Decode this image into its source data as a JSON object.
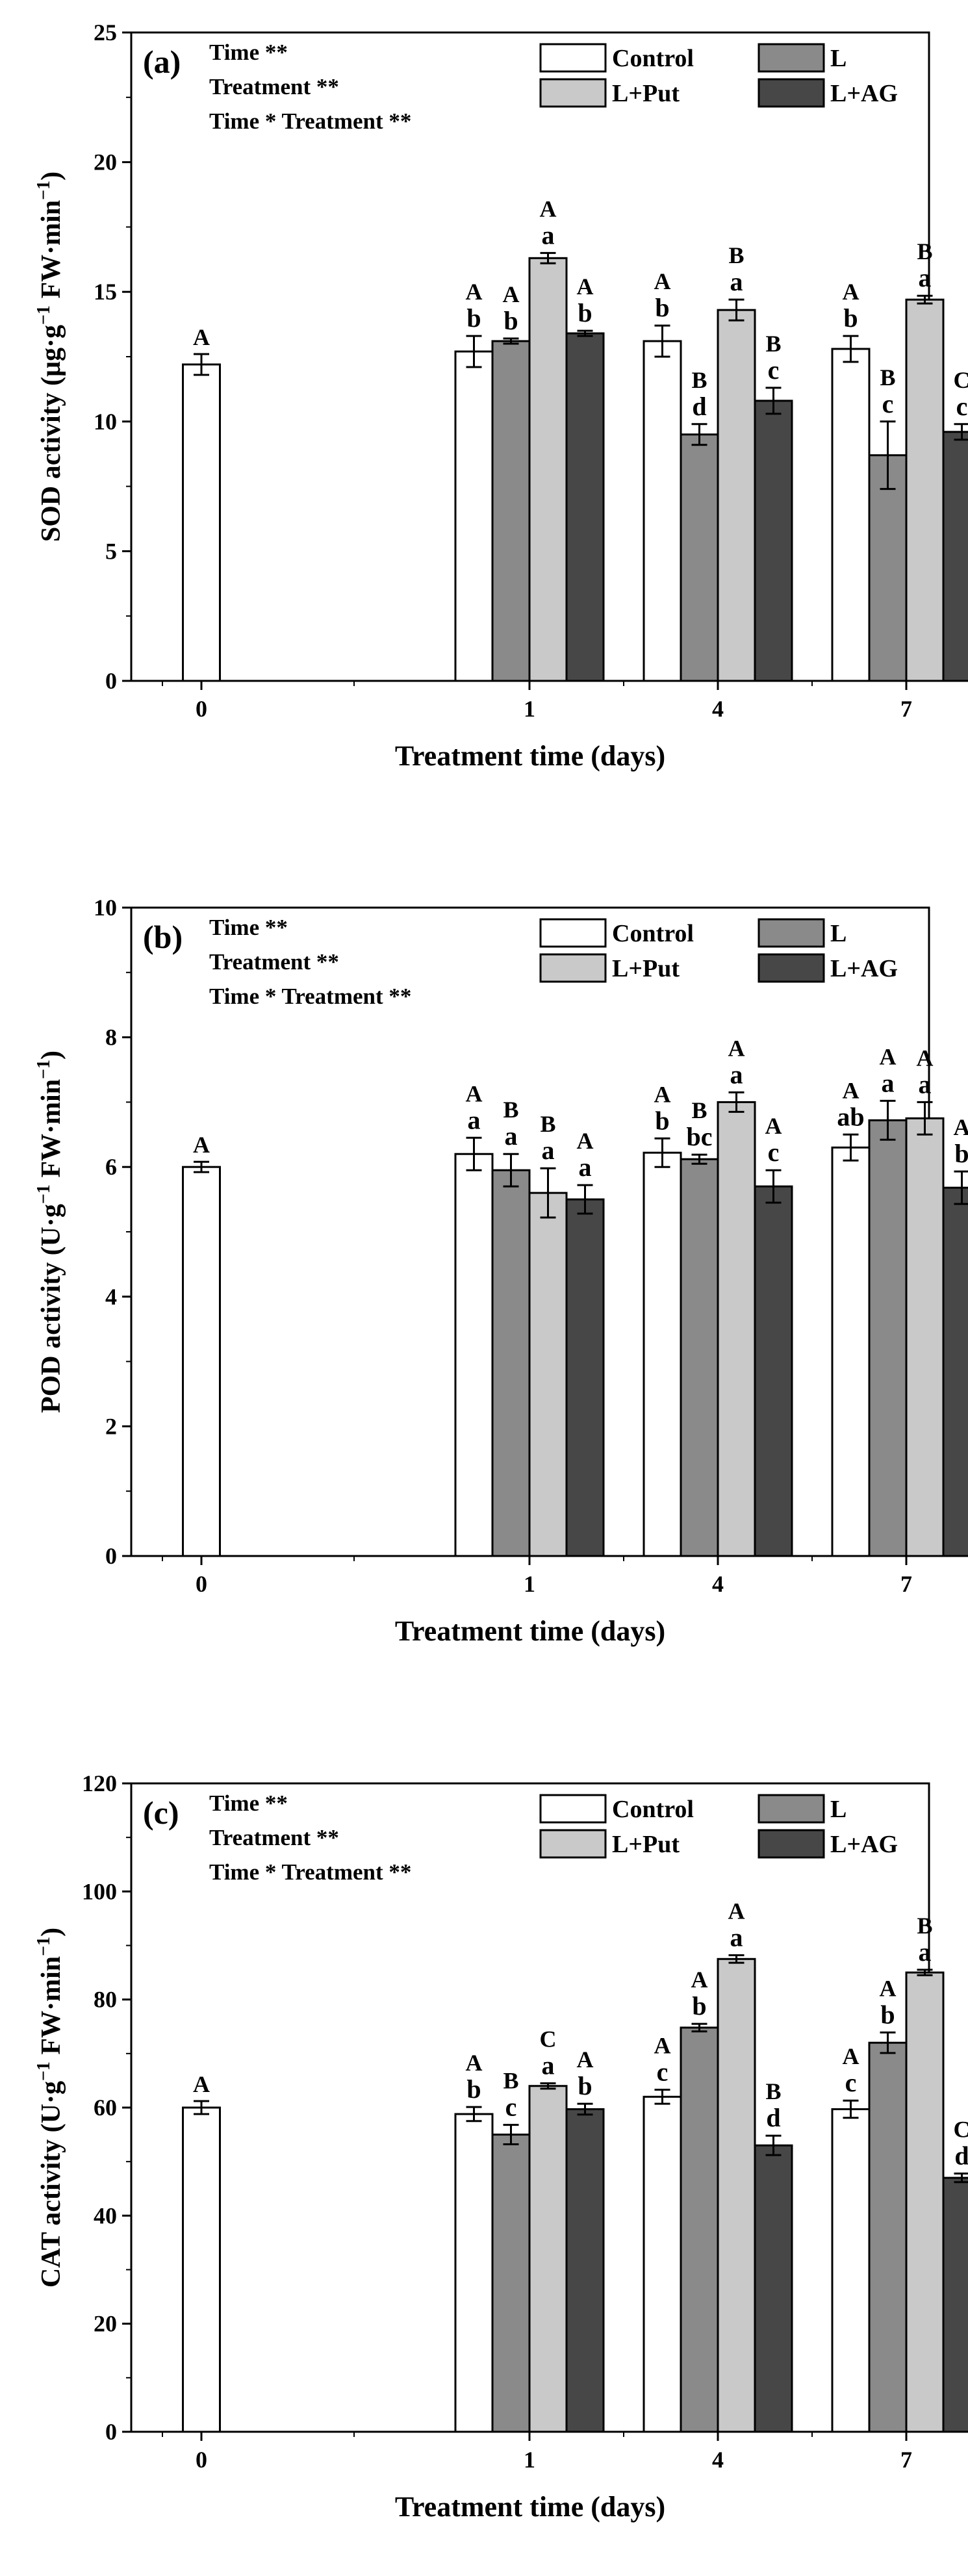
{
  "legend": [
    "Control",
    "L",
    "L+Put",
    "L+AG"
  ],
  "colors": {
    "Control": "#ffffff",
    "L": "#8a8a8a",
    "L+Put": "#c9c9c9",
    "L+AG": "#474747",
    "axis": "#000000"
  },
  "chart_data": [
    {
      "type": "bar",
      "panel": "(a)",
      "stats": [
        "Time **",
        "Treatment  **",
        "Time * Treatment **"
      ],
      "ylabel_main": "SOD activity (μg·g",
      "ylabel_sup": "−1",
      "ylabel_mid": " FW·min",
      "ylabel_sup2": "−1",
      "ylabel_end": ")",
      "xlabel": "Treatment time (days)",
      "categories": [
        "0",
        "1",
        "4",
        "7"
      ],
      "ylim": [
        0,
        25
      ],
      "yticks": [
        0,
        5,
        10,
        15,
        20,
        25
      ],
      "series": [
        {
          "name": "Control",
          "values": [
            12.2,
            12.7,
            13.1,
            12.8
          ],
          "errors": [
            0.4,
            0.6,
            0.6,
            0.5
          ],
          "upper": [
            "A",
            "A",
            "A",
            "A"
          ],
          "lower": [
            "",
            "b",
            "b",
            "b"
          ]
        },
        {
          "name": "L",
          "values": [
            null,
            13.1,
            9.5,
            8.7
          ],
          "errors": [
            null,
            0.1,
            0.4,
            1.3
          ],
          "upper": [
            "",
            "A",
            "B",
            "B"
          ],
          "lower": [
            "",
            "b",
            "d",
            "c"
          ]
        },
        {
          "name": "L+Put",
          "values": [
            null,
            16.3,
            14.3,
            14.7
          ],
          "errors": [
            null,
            0.2,
            0.4,
            0.15
          ],
          "upper": [
            "",
            "A",
            "B",
            "B"
          ],
          "lower": [
            "",
            "a",
            "a",
            "a"
          ]
        },
        {
          "name": "L+AG",
          "values": [
            null,
            13.4,
            10.8,
            9.6
          ],
          "errors": [
            null,
            0.1,
            0.5,
            0.3
          ],
          "upper": [
            "",
            "A",
            "B",
            "C"
          ],
          "lower": [
            "",
            "b",
            "c",
            "c"
          ]
        }
      ]
    },
    {
      "type": "bar",
      "panel": "(b)",
      "stats": [
        "Time **",
        "Treatment  **",
        "Time * Treatment **"
      ],
      "ylabel_main": "POD activity (U·g",
      "ylabel_sup": "−1",
      "ylabel_mid": " FW·min",
      "ylabel_sup2": "−1",
      "ylabel_end": ")",
      "xlabel": "Treatment time (days)",
      "categories": [
        "0",
        "1",
        "4",
        "7"
      ],
      "ylim": [
        0,
        10
      ],
      "yticks": [
        0,
        2,
        4,
        6,
        8,
        10
      ],
      "series": [
        {
          "name": "Control",
          "values": [
            6.0,
            6.2,
            6.22,
            6.3
          ],
          "errors": [
            0.08,
            0.25,
            0.22,
            0.2
          ],
          "upper": [
            "A",
            "A",
            "A",
            "A"
          ],
          "lower": [
            "",
            "a",
            "b",
            "ab"
          ]
        },
        {
          "name": "L",
          "values": [
            null,
            5.95,
            6.12,
            6.72
          ],
          "errors": [
            null,
            0.25,
            0.07,
            0.3
          ],
          "upper": [
            "",
            "B",
            "B",
            "A"
          ],
          "lower": [
            "",
            "a",
            "bc",
            "a"
          ]
        },
        {
          "name": "L+Put",
          "values": [
            null,
            5.6,
            7.0,
            6.75
          ],
          "errors": [
            null,
            0.38,
            0.15,
            0.25
          ],
          "upper": [
            "",
            "B",
            "A",
            "A"
          ],
          "lower": [
            "",
            "a",
            "a",
            "a"
          ]
        },
        {
          "name": "L+AG",
          "values": [
            null,
            5.5,
            5.7,
            5.68
          ],
          "errors": [
            null,
            0.22,
            0.25,
            0.25
          ],
          "upper": [
            "",
            "A",
            "A",
            "A"
          ],
          "lower": [
            "",
            "a",
            "c",
            "b"
          ]
        }
      ]
    },
    {
      "type": "bar",
      "panel": "(c)",
      "stats": [
        "Time **",
        "Treatment  **",
        "Time * Treatment **"
      ],
      "ylabel_main": "CAT activity (U·g",
      "ylabel_sup": "−1",
      "ylabel_mid": " FW·min",
      "ylabel_sup2": "−1",
      "ylabel_end": ")",
      "xlabel": "Treatment time (days)",
      "categories": [
        "0",
        "1",
        "4",
        "7"
      ],
      "ylim": [
        0,
        120
      ],
      "yticks": [
        0,
        20,
        40,
        60,
        80,
        100,
        120
      ],
      "series": [
        {
          "name": "Control",
          "values": [
            60.0,
            58.8,
            62.0,
            59.7
          ],
          "errors": [
            1.2,
            1.3,
            1.3,
            1.6
          ],
          "upper": [
            "A",
            "A",
            "A",
            "A"
          ],
          "lower": [
            "",
            "b",
            "c",
            "c"
          ]
        },
        {
          "name": "L",
          "values": [
            null,
            55.0,
            74.8,
            72.0
          ],
          "errors": [
            null,
            1.8,
            0.7,
            1.9
          ],
          "upper": [
            "",
            "B",
            "A",
            "A"
          ],
          "lower": [
            "",
            "c",
            "b",
            "b"
          ]
        },
        {
          "name": "L+Put",
          "values": [
            null,
            64.0,
            87.5,
            85.0
          ],
          "errors": [
            null,
            0.5,
            0.7,
            0.5
          ],
          "upper": [
            "",
            "C",
            "A",
            "B"
          ],
          "lower": [
            "",
            "a",
            "a",
            "a"
          ]
        },
        {
          "name": "L+AG",
          "values": [
            null,
            59.7,
            53.0,
            47.0
          ],
          "errors": [
            null,
            1.0,
            1.8,
            0.8
          ],
          "upper": [
            "",
            "A",
            "B",
            "C"
          ],
          "lower": [
            "",
            "b",
            "d",
            "d"
          ]
        }
      ]
    }
  ]
}
